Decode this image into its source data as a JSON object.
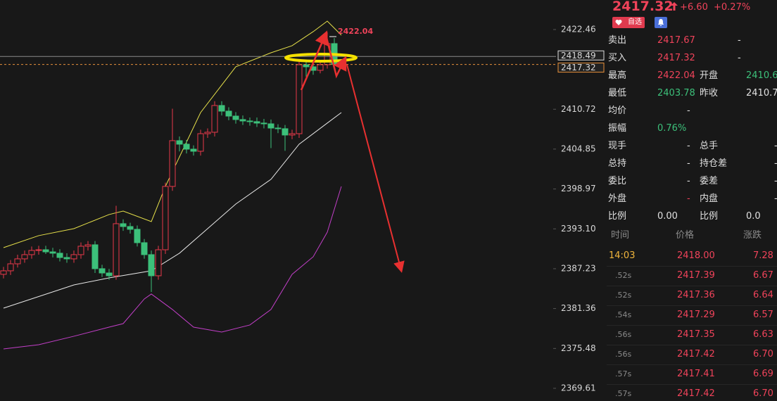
{
  "chart_data": {
    "type": "candlestick",
    "ylim": [
      2367.74,
      2426.81
    ],
    "yticks": [
      2422.46,
      2410.72,
      2404.85,
      2398.97,
      {
        "value": 2393.1,
        "label": "2393.10"
      },
      2387.23,
      2381.36,
      2375.48,
      2369.61
    ],
    "up_color": "#e8394a",
    "down_color": "#3cc07a",
    "open": [
      2386.4,
      2386.92,
      2387.95,
      2388.68,
      2389.3,
      2389.92,
      2390.02,
      2389.71,
      2389.51,
      2388.88,
      2388.68,
      2389.3,
      2390.54,
      2390.75,
      2387.23,
      2386.6,
      2386.19,
      2393.86,
      2393.44,
      2393.03,
      2391.06,
      2389.3,
      2386.19,
      2390.02,
      2399.35,
      2406.09,
      2405.57,
      2404.84,
      2404.53,
      2407.12,
      2407.33,
      2411.27,
      2410.44,
      2409.71,
      2409.2,
      2408.99,
      2408.89,
      2408.68,
      2408.57,
      2407.95,
      2407.85,
      2406.92,
      2407.12,
      2417.28,
      2416.97,
      2416.45,
      2417.28,
      2420.39
    ],
    "high": [
      2387.5,
      2388.5,
      2389.3,
      2389.9,
      2390.5,
      2390.6,
      2390.6,
      2390.3,
      2390.1,
      2389.5,
      2389.9,
      2391.1,
      2391.3,
      2391.3,
      2387.8,
      2387.2,
      2396.5,
      2394.5,
      2394.0,
      2393.6,
      2391.6,
      2389.9,
      2390.6,
      2399.9,
      2410.8,
      2406.7,
      2406.2,
      2405.4,
      2407.7,
      2407.9,
      2411.9,
      2411.9,
      2411.0,
      2410.3,
      2409.8,
      2409.5,
      2409.5,
      2409.3,
      2409.2,
      2408.5,
      2408.4,
      2407.7,
      2417.9,
      2418.0,
      2417.6,
      2417.9,
      2422.04,
      2421.2
    ],
    "low": [
      2385.8,
      2386.3,
      2387.4,
      2388.1,
      2388.7,
      2389.3,
      2389.4,
      2388.9,
      2388.3,
      2388.1,
      2388.1,
      2388.7,
      2389.9,
      2386.6,
      2386.0,
      2385.6,
      2385.6,
      2392.8,
      2392.4,
      2390.5,
      2388.7,
      2383.8,
      2385.6,
      2389.4,
      2398.7,
      2404.5,
      2404.2,
      2403.9,
      2403.9,
      2406.5,
      2406.7,
      2409.8,
      2409.1,
      2408.6,
      2408.4,
      2408.3,
      2408.1,
      2407.9,
      2405.0,
      2407.2,
      2404.6,
      2406.3,
      2406.5,
      2415.5,
      2415.8,
      2416.0,
      2416.7,
      2416.8
    ],
    "close": [
      2386.92,
      2387.95,
      2388.68,
      2389.3,
      2389.92,
      2390.02,
      2389.71,
      2389.51,
      2388.88,
      2388.68,
      2389.3,
      2390.54,
      2390.75,
      2387.23,
      2386.6,
      2386.19,
      2393.86,
      2393.44,
      2393.03,
      2391.06,
      2389.3,
      2386.19,
      2390.02,
      2399.35,
      2406.09,
      2405.57,
      2404.84,
      2404.53,
      2407.12,
      2407.33,
      2411.27,
      2410.44,
      2409.71,
      2409.2,
      2408.99,
      2408.89,
      2408.68,
      2408.57,
      2407.95,
      2407.85,
      2406.92,
      2407.12,
      2417.28,
      2416.97,
      2416.45,
      2417.28,
      2420.39,
      2417.32
    ],
    "bands": [
      {
        "color": "#e6e04a",
        "x": [
          0,
          5,
          10,
          15,
          17,
          21,
          23,
          28,
          33,
          38,
          41,
          44,
          46,
          48
        ],
        "values": [
          2390.33,
          2392.1,
          2393.13,
          2395.21,
          2395.72,
          2394.17,
          2399.35,
          2410.23,
          2416.97,
          2419.04,
          2420.08,
          2422.15,
          2423.7,
          2421.63
        ]
      },
      {
        "color": "#e8e8e8",
        "x": [
          0,
          10,
          15,
          21,
          25,
          29,
          33,
          38,
          42,
          46,
          48
        ],
        "values": [
          2381.42,
          2384.84,
          2385.88,
          2386.92,
          2389.51,
          2393.13,
          2396.76,
          2400.39,
          2405.57,
          2408.68,
          2410.23
        ]
      },
      {
        "color": "#c23fc8",
        "x": [
          0,
          5,
          10,
          15,
          17,
          20,
          21,
          24,
          27,
          31,
          35,
          38,
          41,
          44,
          46,
          48
        ],
        "values": [
          2375.41,
          2376.03,
          2377.28,
          2378.62,
          2379.14,
          2382.77,
          2383.5,
          2381.22,
          2378.62,
          2377.9,
          2378.94,
          2381.22,
          2386.4,
          2388.99,
          2392.61,
          2399.35
        ]
      }
    ],
    "price_lines": [
      2418.49,
      2417.32
    ],
    "high_label": 2422.04
  },
  "quote": {
    "price": "2417.32",
    "change": "+6.60",
    "pct": "+0.27%",
    "watch": "自选",
    "rows": [
      {
        "label": "卖出",
        "value": "2417.67",
        "color": "#f0435a",
        "value2": "-"
      },
      {
        "label": "买入",
        "value": "2417.32",
        "color": "#f0435a",
        "value2": "-"
      },
      {
        "label": "最高",
        "value": "2422.04",
        "color": "#f0435a",
        "label2": "开盘",
        "value2": "2410.6",
        "color2": "#3cc07a"
      },
      {
        "label": "最低",
        "value": "2403.78",
        "color": "#3cc07a",
        "label2": "昨收",
        "value2": "2410.7",
        "color2": "#e0e0e0"
      },
      {
        "label": "均价",
        "value": "-",
        "color": "#e0e0e0"
      },
      {
        "label": "振幅",
        "value": "0.76%",
        "color": "#3cc07a"
      },
      {
        "label": "现手",
        "value": "-",
        "color": "#e0e0e0",
        "label2": "总手",
        "value2": "-"
      },
      {
        "label": "总持",
        "value": "-",
        "color": "#e0e0e0",
        "label2": "持仓差",
        "value2": "-"
      },
      {
        "label": "委比",
        "value": "-",
        "color": "#e0e0e0",
        "label2": "委差",
        "value2": "-"
      },
      {
        "label": "外盘",
        "value": "-",
        "color": "#f0435a",
        "label2": "内盘",
        "value2": "-"
      },
      {
        "label": "比例",
        "value": "0.00",
        "color": "#e0e0e0",
        "label2": "比例",
        "value2": "0.0"
      }
    ],
    "trade_header": [
      "时间",
      "价格",
      "涨跌"
    ],
    "trades": [
      {
        "time": "14:03",
        "price": "2418.00",
        "change": "7.28"
      },
      {
        "time": ".52s",
        "price": "2417.39",
        "change": "6.67"
      },
      {
        "time": ".52s",
        "price": "2417.36",
        "change": "6.64"
      },
      {
        "time": ".54s",
        "price": "2417.29",
        "change": "6.57"
      },
      {
        "time": ".56s",
        "price": "2417.35",
        "change": "6.63"
      },
      {
        "time": ".56s",
        "price": "2417.42",
        "change": "6.70"
      },
      {
        "time": ".57s",
        "price": "2417.41",
        "change": "6.69"
      },
      {
        "time": ".57s",
        "price": "2417.42",
        "change": "6.70"
      }
    ]
  }
}
